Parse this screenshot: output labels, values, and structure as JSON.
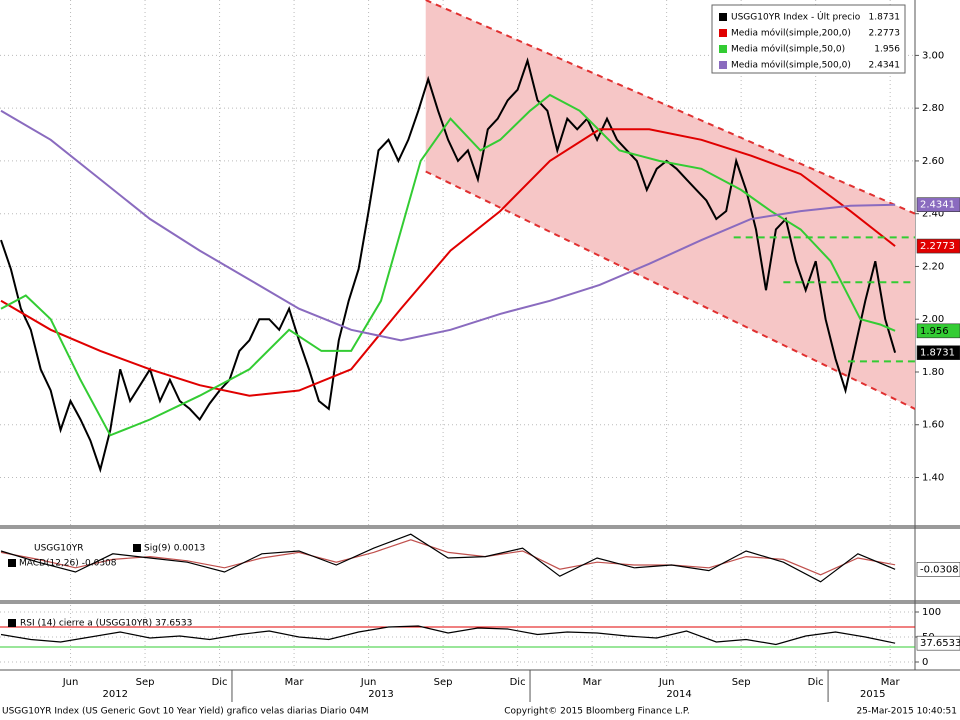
{
  "chart_data": [
    {
      "type": "line",
      "xlim": [
        2.66,
        39.5
      ],
      "ylim": [
        1.22,
        3.21
      ],
      "yticks": [
        {
          "value": 1.4,
          "label": "1.40"
        },
        {
          "value": 1.6,
          "label": "1.60"
        },
        {
          "value": 1.8,
          "label": "1.80"
        },
        {
          "value": 2.0,
          "label": "2.00"
        },
        {
          "value": 2.2,
          "label": "2.20"
        },
        {
          "value": 2.4,
          "label": "2.40"
        },
        {
          "value": 2.6,
          "label": "2.60"
        },
        {
          "value": 2.8,
          "label": "2.80"
        },
        {
          "value": 3.0,
          "label": "3.00"
        }
      ],
      "xticks": [
        {
          "value": 5.5,
          "label": "Jun"
        },
        {
          "value": 8.5,
          "label": "Sep"
        },
        {
          "value": 11.5,
          "label": "Dic"
        },
        {
          "value": 14.5,
          "label": "Mar"
        },
        {
          "value": 17.5,
          "label": "Jun"
        },
        {
          "value": 20.5,
          "label": "Sep"
        },
        {
          "value": 23.5,
          "label": "Dic"
        },
        {
          "value": 26.5,
          "label": "Mar"
        },
        {
          "value": 29.5,
          "label": "Jun"
        },
        {
          "value": 32.5,
          "label": "Sep"
        },
        {
          "value": 35.5,
          "label": "Dic"
        },
        {
          "value": 38.5,
          "label": "Mar"
        }
      ],
      "year_ticks": [
        {
          "value": 7.3,
          "label": "2012"
        },
        {
          "value": 18.0,
          "label": "2013"
        },
        {
          "value": 30.0,
          "label": "2014"
        },
        {
          "value": 37.8,
          "label": "2015"
        }
      ],
      "year_breaks": [
        12,
        24,
        36
      ],
      "grid": true,
      "channel": {
        "color": "#f6c6c6",
        "line_color": "#e03030",
        "x": [
          19.8,
          39.5
        ],
        "upper": [
          3.21,
          2.4
        ],
        "lower": [
          2.56,
          1.66
        ]
      },
      "levels": {
        "color": "#33cc33",
        "items": [
          {
            "x": [
              32.2,
              39.5
            ],
            "value": 2.31
          },
          {
            "x": [
              34.2,
              39.5
            ],
            "value": 2.14
          },
          {
            "x": [
              36.8,
              39.5
            ],
            "value": 1.84
          }
        ]
      },
      "series": [
        {
          "name": "USGG10YR Index - Últ precio",
          "color": "#000000",
          "text_color": "#ffffff",
          "x": [
            2.7,
            3.1,
            3.5,
            3.9,
            4.3,
            4.7,
            5.1,
            5.5,
            5.9,
            6.3,
            6.7,
            7.1,
            7.5,
            7.9,
            8.3,
            8.7,
            9.1,
            9.5,
            9.9,
            10.3,
            10.7,
            11.1,
            11.5,
            11.9,
            12.3,
            12.7,
            13.1,
            13.5,
            13.9,
            14.3,
            14.7,
            15.1,
            15.5,
            15.9,
            16.3,
            16.7,
            17.1,
            17.5,
            17.9,
            18.3,
            18.7,
            19.1,
            19.5,
            19.9,
            20.3,
            20.7,
            21.1,
            21.5,
            21.9,
            22.3,
            22.7,
            23.1,
            23.5,
            23.9,
            24.3,
            24.7,
            25.1,
            25.5,
            25.9,
            26.3,
            26.7,
            27.1,
            27.5,
            27.9,
            28.3,
            28.7,
            29.1,
            29.5,
            29.9,
            30.3,
            30.7,
            31.1,
            31.5,
            31.9,
            32.3,
            32.7,
            33.1,
            33.5,
            33.9,
            34.3,
            34.7,
            35.1,
            35.5,
            35.9,
            36.3,
            36.7,
            37.1,
            37.5,
            37.9,
            38.3,
            38.7
          ],
          "values": [
            2.3,
            2.19,
            2.04,
            1.96,
            1.81,
            1.73,
            1.58,
            1.69,
            1.62,
            1.54,
            1.43,
            1.58,
            1.81,
            1.69,
            1.75,
            1.81,
            1.69,
            1.77,
            1.69,
            1.66,
            1.62,
            1.68,
            1.73,
            1.77,
            1.88,
            1.92,
            2.0,
            2.0,
            1.96,
            2.04,
            1.92,
            1.81,
            1.69,
            1.66,
            1.92,
            2.07,
            2.19,
            2.41,
            2.64,
            2.68,
            2.6,
            2.68,
            2.79,
            2.91,
            2.79,
            2.68,
            2.6,
            2.64,
            2.53,
            2.72,
            2.76,
            2.83,
            2.87,
            2.98,
            2.83,
            2.79,
            2.64,
            2.76,
            2.72,
            2.76,
            2.68,
            2.76,
            2.68,
            2.64,
            2.6,
            2.49,
            2.57,
            2.6,
            2.57,
            2.53,
            2.49,
            2.45,
            2.38,
            2.41,
            2.6,
            2.49,
            2.34,
            2.11,
            2.34,
            2.38,
            2.22,
            2.11,
            2.22,
            2.0,
            1.85,
            1.73,
            1.9,
            2.07,
            2.22,
            2.0,
            1.8731
          ]
        },
        {
          "name": "Media móvil(simple,200,0)",
          "color": "#e00000",
          "text_color": "#ffffff",
          "x": [
            2.7,
            4.7,
            6.7,
            8.7,
            10.7,
            12.7,
            14.7,
            16.8,
            18.8,
            20.8,
            22.8,
            24.8,
            26.8,
            28.8,
            30.9,
            32.9,
            34.9,
            36.9,
            38.7
          ],
          "values": [
            2.07,
            1.96,
            1.88,
            1.81,
            1.75,
            1.71,
            1.73,
            1.81,
            2.04,
            2.26,
            2.41,
            2.6,
            2.72,
            2.72,
            2.68,
            2.62,
            2.55,
            2.41,
            2.2773
          ]
        },
        {
          "name": "Media móvil(simple,50,0)",
          "color": "#33cc33",
          "text_color": "#000000",
          "x": [
            2.7,
            3.7,
            4.7,
            5.9,
            7.1,
            8.7,
            10.7,
            12.7,
            14.3,
            15.6,
            16.8,
            18.0,
            19.6,
            20.8,
            22.0,
            22.8,
            24.0,
            24.8,
            26.0,
            27.6,
            29.2,
            30.9,
            32.5,
            33.7,
            34.9,
            36.1,
            37.3,
            38.1,
            38.7
          ],
          "values": [
            2.04,
            2.09,
            2.0,
            1.77,
            1.56,
            1.62,
            1.71,
            1.81,
            1.96,
            1.88,
            1.88,
            2.07,
            2.6,
            2.76,
            2.64,
            2.68,
            2.79,
            2.85,
            2.79,
            2.64,
            2.6,
            2.57,
            2.49,
            2.41,
            2.34,
            2.22,
            2.0,
            1.98,
            1.956
          ]
        },
        {
          "name": "Media móvil(simple,500,0)",
          "color": "#8a6bbf",
          "text_color": "#ffffff",
          "x": [
            2.7,
            4.7,
            6.7,
            8.7,
            10.7,
            12.7,
            14.7,
            16.8,
            18.8,
            20.8,
            22.8,
            24.8,
            26.8,
            28.8,
            30.9,
            32.9,
            34.9,
            36.9,
            38.7
          ],
          "values": [
            2.79,
            2.68,
            2.53,
            2.38,
            2.26,
            2.15,
            2.04,
            1.96,
            1.92,
            1.96,
            2.02,
            2.07,
            2.13,
            2.21,
            2.3,
            2.38,
            2.41,
            2.43,
            2.4341
          ]
        }
      ]
    },
    {
      "type": "line",
      "title": "USGG10YR",
      "ylim": [
        -0.25,
        0.25
      ],
      "x": [
        2.7,
        4.2,
        5.7,
        7.2,
        8.7,
        10.2,
        11.7,
        13.2,
        14.7,
        16.2,
        17.7,
        19.2,
        20.7,
        22.2,
        23.7,
        25.2,
        26.7,
        28.2,
        29.7,
        31.2,
        32.7,
        34.2,
        35.7,
        37.2,
        38.7
      ],
      "series": [
        {
          "name": "Sig(9)",
          "color": "#c0504d",
          "values": [
            0.09,
            0.04,
            -0.02,
            0.04,
            0.06,
            0.03,
            -0.02,
            0.05,
            0.09,
            0.02,
            0.09,
            0.18,
            0.09,
            0.06,
            0.1,
            -0.03,
            0.02,
            0.0,
            0.0,
            -0.02,
            0.06,
            0.04,
            -0.07,
            0.05,
            0.0013
          ]
        },
        {
          "name": "MACD(12,26)",
          "color": "#000000",
          "values": [
            0.1,
            0.02,
            -0.05,
            0.08,
            0.05,
            0.02,
            -0.05,
            0.08,
            0.1,
            0.0,
            0.12,
            0.22,
            0.05,
            0.06,
            0.12,
            -0.08,
            0.05,
            -0.02,
            0.0,
            -0.04,
            0.1,
            0.02,
            -0.12,
            0.08,
            -0.0308
          ]
        }
      ]
    },
    {
      "type": "line",
      "ylim": [
        -12,
        114
      ],
      "yticks": [
        0,
        50,
        100
      ],
      "hlines": [
        {
          "value": 70,
          "color": "#e00000"
        },
        {
          "value": 30,
          "color": "#33cc33"
        }
      ],
      "x": [
        2.7,
        3.9,
        5.1,
        6.3,
        7.5,
        8.7,
        9.9,
        11.1,
        12.3,
        13.5,
        14.7,
        15.9,
        17.1,
        18.3,
        19.5,
        20.7,
        21.9,
        23.1,
        24.3,
        25.5,
        26.7,
        27.9,
        29.1,
        30.3,
        31.5,
        32.7,
        33.9,
        35.1,
        36.3,
        37.5,
        38.7
      ],
      "series": [
        {
          "name": "RSI (14) cierre a (USGG10YR)",
          "color": "#000000",
          "values": [
            55,
            45,
            40,
            50,
            60,
            48,
            52,
            45,
            55,
            62,
            50,
            45,
            60,
            70,
            72,
            58,
            68,
            66,
            55,
            60,
            58,
            52,
            48,
            62,
            40,
            45,
            35,
            52,
            60,
            50,
            37.6533
          ]
        }
      ]
    }
  ],
  "footer": {
    "left": "USGG10YR Index (US Generic Govt 10 Year Yield) grafico velas diarias  Diario 04M",
    "center": "Copyright© 2015 Bloomberg Finance L.P.",
    "right": "25-Mar-2015 10:40:51"
  }
}
